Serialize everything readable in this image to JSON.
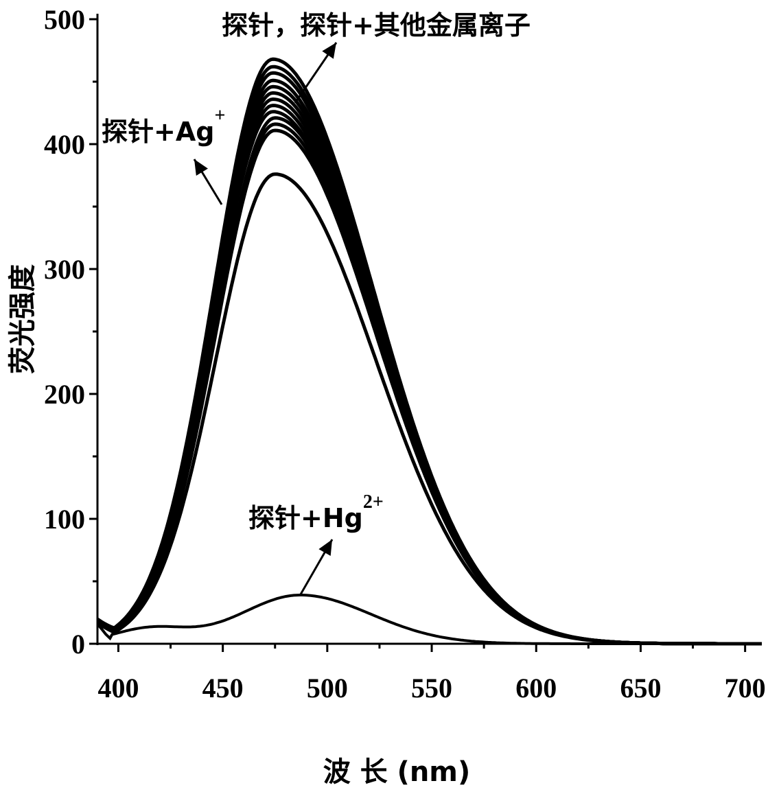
{
  "chart_data": {
    "type": "line",
    "title": "",
    "xlabel": "波 长 (nm)",
    "ylabel": "荧光强度",
    "xlim": [
      390,
      708
    ],
    "ylim": [
      0,
      500
    ],
    "x_ticks": [
      400,
      450,
      500,
      550,
      600,
      650,
      700
    ],
    "y_ticks": [
      0,
      100,
      200,
      300,
      400,
      500
    ],
    "grid": false,
    "legend": "none",
    "line_color": "#000000",
    "annotations": [
      {
        "id": "others",
        "text": "探针，探针+其他金属离子"
      },
      {
        "id": "ag",
        "main": "探针+Ag",
        "sup": "+"
      },
      {
        "id": "hg",
        "main": "探针+Hg",
        "sup": "2+"
      }
    ],
    "series": [
      {
        "peak_x": 474,
        "peak_y": 468
      },
      {
        "peak_x": 474,
        "peak_y": 462
      },
      {
        "peak_x": 474,
        "peak_y": 457
      },
      {
        "peak_x": 474,
        "peak_y": 451
      },
      {
        "peak_x": 474,
        "peak_y": 446
      },
      {
        "peak_x": 474,
        "peak_y": 441
      },
      {
        "peak_x": 474,
        "peak_y": 436
      },
      {
        "peak_x": 474,
        "peak_y": 431
      },
      {
        "peak_x": 474,
        "peak_y": 426
      },
      {
        "peak_x": 475,
        "peak_y": 421
      },
      {
        "peak_x": 475,
        "peak_y": 416
      },
      {
        "peak_x": 475,
        "peak_y": 411
      },
      {
        "peak_x": 475,
        "peak_y": 376
      },
      {
        "peak_x": 487,
        "peak_y": 39
      }
    ]
  }
}
